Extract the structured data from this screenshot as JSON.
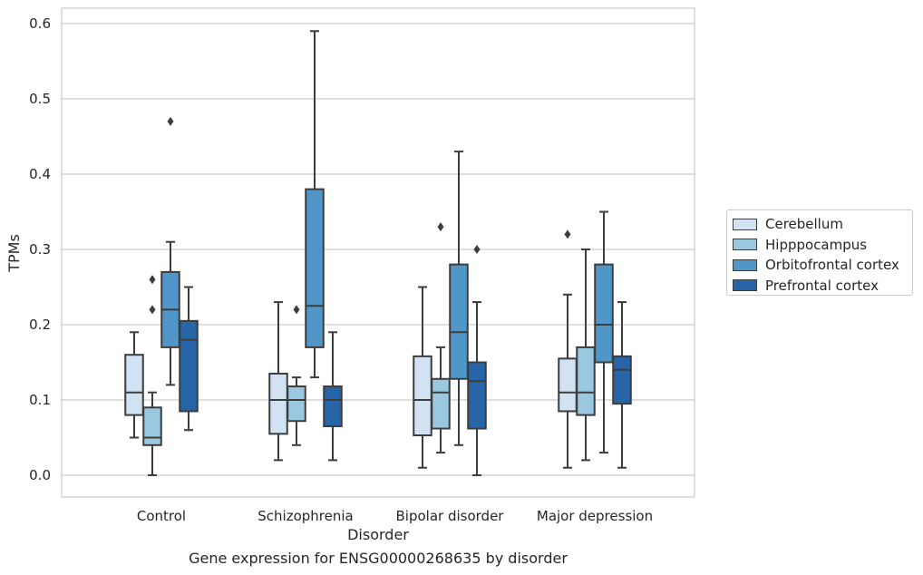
{
  "caption": "Gene expression for ENSG00000268635 by disorder",
  "chart_data": {
    "type": "box",
    "xlabel": "Disorder",
    "ylabel": "TPMs",
    "ylim": [
      -0.028,
      0.62
    ],
    "yticks": [
      "0.0",
      "0.1",
      "0.2",
      "0.3",
      "0.4",
      "0.5",
      "0.6"
    ],
    "grid": "horizontal",
    "legend_position": "right",
    "categories": [
      "Control",
      "Schizophrenia",
      "Bipolar disorder",
      "Major depression"
    ],
    "series": [
      {
        "name": "Cerebellum",
        "color": "#d1e2f2",
        "boxes": [
          {
            "whislo": 0.05,
            "q1": 0.08,
            "med": 0.11,
            "q3": 0.16,
            "whishi": 0.19,
            "fliers": []
          },
          {
            "whislo": 0.02,
            "q1": 0.055,
            "med": 0.1,
            "q3": 0.135,
            "whishi": 0.23,
            "fliers": []
          },
          {
            "whislo": 0.01,
            "q1": 0.053,
            "med": 0.1,
            "q3": 0.158,
            "whishi": 0.25,
            "fliers": []
          },
          {
            "whislo": 0.01,
            "q1": 0.085,
            "med": 0.11,
            "q3": 0.155,
            "whishi": 0.24,
            "fliers": [
              0.32
            ]
          }
        ]
      },
      {
        "name": "Hipppocampus",
        "color": "#9ac8e0",
        "boxes": [
          {
            "whislo": 0.0,
            "q1": 0.04,
            "med": 0.05,
            "q3": 0.09,
            "whishi": 0.11,
            "fliers": [
              0.22,
              0.26
            ]
          },
          {
            "whislo": 0.04,
            "q1": 0.072,
            "med": 0.1,
            "q3": 0.118,
            "whishi": 0.13,
            "fliers": [
              0.22
            ]
          },
          {
            "whislo": 0.03,
            "q1": 0.062,
            "med": 0.11,
            "q3": 0.128,
            "whishi": 0.17,
            "fliers": [
              0.33
            ]
          },
          {
            "whislo": 0.02,
            "q1": 0.08,
            "med": 0.11,
            "q3": 0.17,
            "whishi": 0.3,
            "fliers": []
          }
        ]
      },
      {
        "name": "Orbitofrontal cortex",
        "color": "#5096c8",
        "boxes": [
          {
            "whislo": 0.12,
            "q1": 0.17,
            "med": 0.22,
            "q3": 0.27,
            "whishi": 0.31,
            "fliers": [
              0.47
            ]
          },
          {
            "whislo": 0.13,
            "q1": 0.17,
            "med": 0.225,
            "q3": 0.38,
            "whishi": 0.59,
            "fliers": []
          },
          {
            "whislo": 0.04,
            "q1": 0.128,
            "med": 0.19,
            "q3": 0.28,
            "whishi": 0.43,
            "fliers": []
          },
          {
            "whislo": 0.03,
            "q1": 0.15,
            "med": 0.2,
            "q3": 0.28,
            "whishi": 0.35,
            "fliers": []
          }
        ]
      },
      {
        "name": "Prefrontal cortex",
        "color": "#2765a8",
        "boxes": [
          {
            "whislo": 0.06,
            "q1": 0.085,
            "med": 0.18,
            "q3": 0.205,
            "whishi": 0.25,
            "fliers": []
          },
          {
            "whislo": 0.02,
            "q1": 0.065,
            "med": 0.1,
            "q3": 0.118,
            "whishi": 0.19,
            "fliers": []
          },
          {
            "whislo": 0.0,
            "q1": 0.062,
            "med": 0.125,
            "q3": 0.15,
            "whishi": 0.23,
            "fliers": [
              0.3
            ]
          },
          {
            "whislo": 0.01,
            "q1": 0.095,
            "med": 0.14,
            "q3": 0.158,
            "whishi": 0.23,
            "fliers": []
          }
        ]
      }
    ]
  }
}
